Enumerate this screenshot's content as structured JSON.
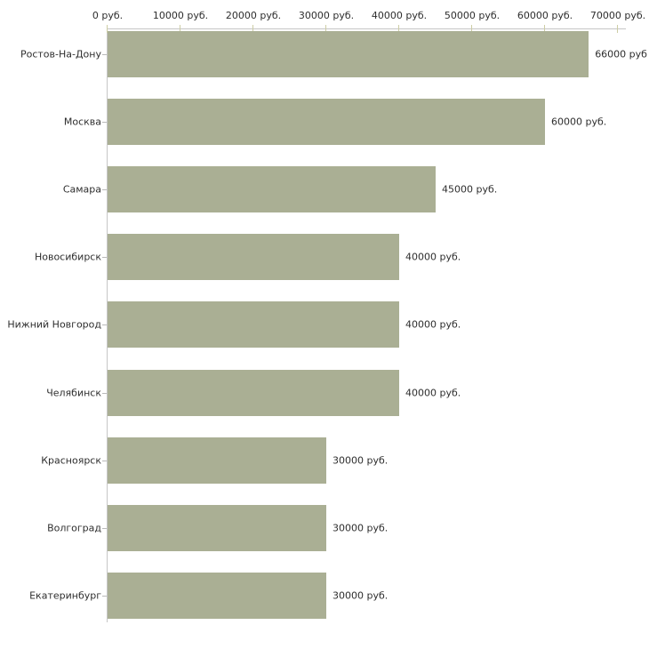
{
  "chart_data": {
    "type": "bar",
    "orientation": "horizontal",
    "title": "",
    "xlabel": "",
    "ylabel": "",
    "xlim": [
      0,
      70000
    ],
    "x_tick_step": 10000,
    "x_tick_labels": [
      "0 руб.",
      "10000 руб.",
      "20000 руб.",
      "30000 руб.",
      "40000 руб.",
      "50000 руб.",
      "60000 руб.",
      "70000 руб."
    ],
    "categories": [
      "Ростов-На-Дону",
      "Москва",
      "Самара",
      "Новосибирск",
      "Нижний Новгород",
      "Челябинск",
      "Красноярск",
      "Волгоград",
      "Екатеринбург"
    ],
    "values": [
      66000,
      60000,
      45000,
      40000,
      40000,
      40000,
      30000,
      30000,
      30000
    ],
    "value_labels": [
      "66000 руб",
      "60000 руб.",
      "45000 руб.",
      "40000 руб.",
      "40000 руб.",
      "40000 руб.",
      "30000 руб.",
      "30000 руб.",
      "30000 руб."
    ],
    "grid": false,
    "legend": "none",
    "colors": {
      "bar": "#aaaf94",
      "axis_line": "#c6c6c6",
      "x_tick": "#cdcda5",
      "y_tick": "#b9b9b9",
      "text": "#2e2e2e",
      "background": "#ffffff"
    }
  }
}
